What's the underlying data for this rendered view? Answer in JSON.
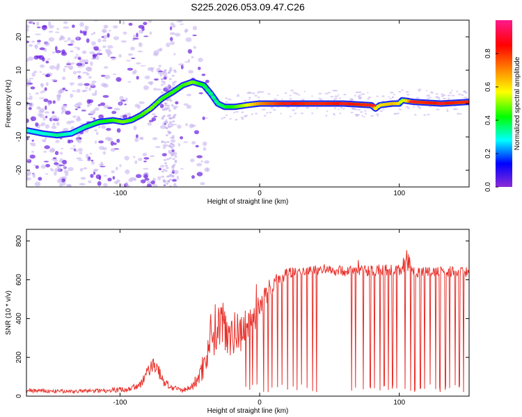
{
  "figure_title": "S225.2026.053.09.47.C26",
  "colors": {
    "snr_line": "#e8302a",
    "ridge_core": "#ff2020",
    "ridge_mid": "#00e070",
    "ridge_edge": "#2020ff",
    "scatter_light": "#c8b4f0",
    "scatter_dark": "#6a1ee0"
  },
  "chart_data": [
    {
      "type": "heatmap",
      "title": "",
      "xlabel": "Height of straight line (km)",
      "ylabel": "Frequency (Hz)",
      "xlim": [
        -167,
        150
      ],
      "ylim": [
        -25,
        25
      ],
      "xticks": [
        -100,
        0,
        100
      ],
      "yticks": [
        -20,
        -10,
        0,
        10,
        20
      ],
      "ridge": {
        "x": [
          -167,
          -155,
          -145,
          -135,
          -125,
          -115,
          -105,
          -98,
          -92,
          -85,
          -78,
          -70,
          -62,
          -55,
          -48,
          -40,
          -35,
          -30,
          -25,
          -18,
          -10,
          0,
          20,
          40,
          60,
          80,
          83,
          86,
          95,
          100,
          102,
          110,
          130,
          150
        ],
        "y": [
          -8,
          -9,
          -9.5,
          -9,
          -7,
          -5.5,
          -5,
          -5.5,
          -5,
          -3.5,
          -1.5,
          1.5,
          3.5,
          5.5,
          6.5,
          5.5,
          3,
          0,
          -1,
          -1,
          -0.5,
          0,
          0,
          0,
          0,
          -0.5,
          -1.5,
          -0.5,
          0,
          0,
          1,
          0.5,
          0,
          0.5
        ],
        "amplitude": [
          0.3,
          0.3,
          0.35,
          0.3,
          0.35,
          0.4,
          0.45,
          0.5,
          0.45,
          0.45,
          0.5,
          0.45,
          0.45,
          0.45,
          0.5,
          0.4,
          0.35,
          0.35,
          0.4,
          0.45,
          0.55,
          0.7,
          0.85,
          0.8,
          0.85,
          0.8,
          0.6,
          0.6,
          0.65,
          0.6,
          0.5,
          0.8,
          0.85,
          0.8
        ]
      },
      "colorbar": {
        "label": "Normalized spectral amplitude",
        "range": [
          0,
          1
        ],
        "ticks": [
          0.0,
          0.2,
          0.4,
          0.6,
          0.8
        ],
        "tick_labels": [
          "0.0",
          "0.2",
          "0.4",
          "0.6",
          "0.8"
        ],
        "stops": [
          "#8c2dd6",
          "#0000ff",
          "#00ffff",
          "#00ff00",
          "#ffff00",
          "#ff8000",
          "#ff0000",
          "#ff1a8c"
        ]
      }
    },
    {
      "type": "line",
      "title": "",
      "xlabel": "Height of straight line (km)",
      "ylabel": "SNR (10 * v/v)",
      "xlim": [
        -167,
        150
      ],
      "ylim": [
        0,
        860
      ],
      "xticks": [
        -100,
        0,
        100
      ],
      "yticks": [
        0,
        200,
        400,
        600,
        800
      ],
      "series": [
        {
          "name": "SNR",
          "x": [
            -167,
            -150,
            -130,
            -110,
            -95,
            -85,
            -80,
            -76,
            -72,
            -68,
            -62,
            -55,
            -48,
            -42,
            -38,
            -35,
            -30,
            -26,
            -22,
            -18,
            -14,
            -10,
            -6,
            -2,
            2,
            6,
            10,
            16,
            22,
            30,
            40,
            50,
            60,
            70,
            80,
            90,
            100,
            105,
            110,
            120,
            130,
            140,
            150
          ],
          "y": [
            30,
            25,
            25,
            30,
            35,
            60,
            130,
            170,
            120,
            70,
            40,
            30,
            50,
            120,
            220,
            320,
            360,
            380,
            340,
            320,
            330,
            380,
            400,
            420,
            470,
            540,
            580,
            610,
            640,
            650,
            655,
            650,
            645,
            650,
            650,
            650,
            650,
            700,
            640,
            640,
            640,
            645,
            640
          ],
          "noise": [
            12,
            10,
            10,
            12,
            15,
            20,
            35,
            40,
            35,
            25,
            15,
            12,
            20,
            60,
            100,
            120,
            140,
            140,
            130,
            120,
            110,
            100,
            90,
            80,
            70,
            55,
            45,
            35,
            30,
            28,
            28,
            28,
            28,
            28,
            30,
            30,
            35,
            60,
            30,
            28,
            28,
            28,
            28
          ],
          "dropouts_x": [
            -10,
            -7,
            -5,
            -2,
            3,
            6,
            9,
            13,
            16,
            20,
            24,
            27,
            30,
            34,
            38,
            41,
            66,
            69,
            74,
            79,
            82,
            86,
            89,
            92,
            95,
            98,
            104,
            108,
            111,
            115,
            118,
            122,
            126,
            129,
            133,
            136,
            140,
            143,
            146
          ]
        }
      ]
    }
  ]
}
